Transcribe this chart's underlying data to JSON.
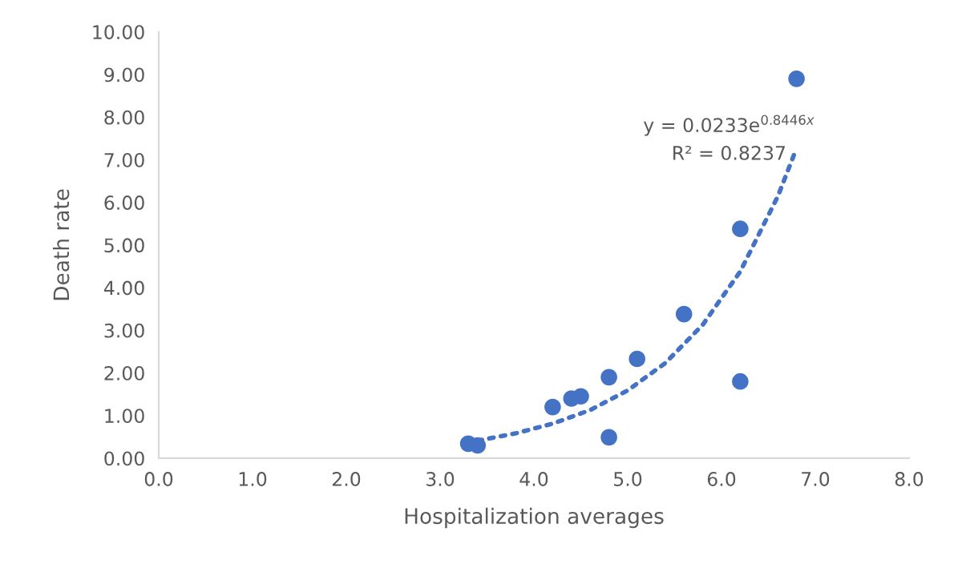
{
  "chart_data": {
    "type": "scatter",
    "xlabel": "Hospitalization averages",
    "ylabel": "Death rate",
    "xlim": [
      0,
      8
    ],
    "xticks": [
      {
        "value": 0,
        "label": "0.0"
      },
      {
        "value": 1,
        "label": "1.0"
      },
      {
        "value": 2,
        "label": "2.0"
      },
      {
        "value": 3,
        "label": "3.0"
      },
      {
        "value": 4,
        "label": "4.0"
      },
      {
        "value": 5,
        "label": "5.0"
      },
      {
        "value": 6,
        "label": "6.0"
      },
      {
        "value": 7,
        "label": "7.0"
      },
      {
        "value": 8,
        "label": "8.0"
      }
    ],
    "ylim": [
      0,
      10
    ],
    "yticks": [
      {
        "value": 0,
        "label": "0.00"
      },
      {
        "value": 1,
        "label": "1.00"
      },
      {
        "value": 2,
        "label": "2.00"
      },
      {
        "value": 3,
        "label": "3.00"
      },
      {
        "value": 4,
        "label": "4.00"
      },
      {
        "value": 5,
        "label": "5.00"
      },
      {
        "value": 6,
        "label": "6.00"
      },
      {
        "value": 7,
        "label": "7.00"
      },
      {
        "value": 8,
        "label": "8.00"
      },
      {
        "value": 9,
        "label": "9.00"
      },
      {
        "value": 10,
        "label": "10.00"
      }
    ],
    "grid": false,
    "legend": false,
    "series": [
      {
        "color": "#4472c4",
        "marker": "circle",
        "x": [
          3.3,
          3.4,
          4.2,
          4.4,
          4.5,
          4.8,
          4.8,
          5.1,
          5.6,
          6.2,
          6.2,
          6.8
        ],
        "values": [
          0.34,
          0.3,
          1.2,
          1.4,
          1.45,
          1.9,
          0.49,
          2.33,
          3.38,
          5.38,
          1.8,
          8.9
        ]
      },
      {
        "type": "line",
        "color": "#4472c4",
        "line_style": "dotted",
        "x": [
          3.4,
          3.8,
          4.2,
          4.6,
          5.0,
          5.4,
          5.8,
          6.2,
          6.6,
          6.8
        ],
        "values": [
          0.41,
          0.58,
          0.81,
          1.13,
          1.59,
          2.23,
          3.13,
          4.38,
          6.14,
          7.27
        ]
      }
    ],
    "annotations": [
      "y = 0.0233e$^{0.8446x}$",
      "R² = 0.8237"
    ]
  }
}
